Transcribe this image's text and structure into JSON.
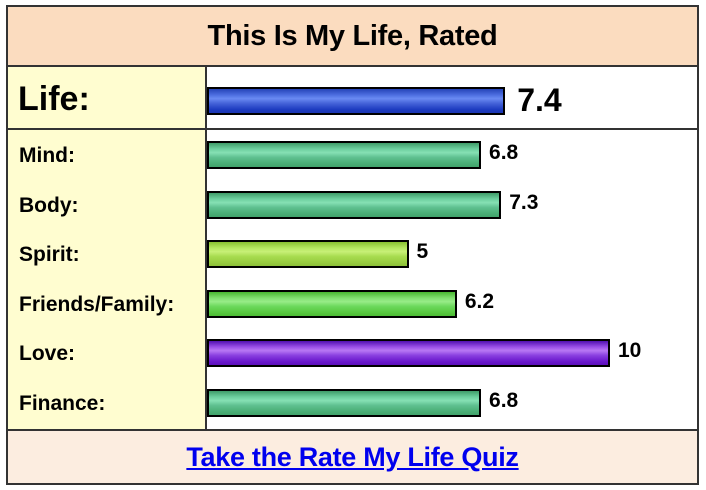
{
  "header": {
    "title": "This Is My Life, Rated"
  },
  "life": {
    "label": "Life:",
    "value": "7.4",
    "score": 7.4,
    "color": "#2a4ccc"
  },
  "ratings": [
    {
      "label": "Mind:",
      "value": "6.8",
      "score": 6.8,
      "color": "mind-green"
    },
    {
      "label": "Body:",
      "value": "7.3",
      "score": 7.3,
      "color": "mind-green"
    },
    {
      "label": "Spirit:",
      "value": "5",
      "score": 5,
      "color": "lime"
    },
    {
      "label": "Friends/Family:",
      "value": "6.2",
      "score": 6.2,
      "color": "green"
    },
    {
      "label": "Love:",
      "value": "10",
      "score": 10,
      "color": "purple"
    },
    {
      "label": "Finance:",
      "value": "6.8",
      "score": 6.8,
      "color": "mind-green"
    }
  ],
  "footer": {
    "link_text": "Take the Rate My Life Quiz"
  },
  "colors": {
    "header_bg": "#fbdcbf",
    "label_bg": "#fffdd0",
    "footer_bg": "#fcede0",
    "border": "#333333",
    "link": "#0000ee"
  },
  "chart_data": {
    "type": "bar",
    "orientation": "horizontal",
    "title": "This Is My Life, Rated",
    "categories": [
      "Life",
      "Mind",
      "Body",
      "Spirit",
      "Friends/Family",
      "Love",
      "Finance"
    ],
    "values": [
      7.4,
      6.8,
      7.3,
      5,
      6.2,
      10,
      6.8
    ],
    "xlim": [
      0,
      10
    ],
    "xlabel": "",
    "ylabel": "",
    "grid": false,
    "legend": "none",
    "bar_colors": [
      "#2a4ccc",
      "#5cbf8a",
      "#5cbf8a",
      "#a8d84a",
      "#6ad84a",
      "#6a1ac8",
      "#5cbf8a"
    ]
  }
}
